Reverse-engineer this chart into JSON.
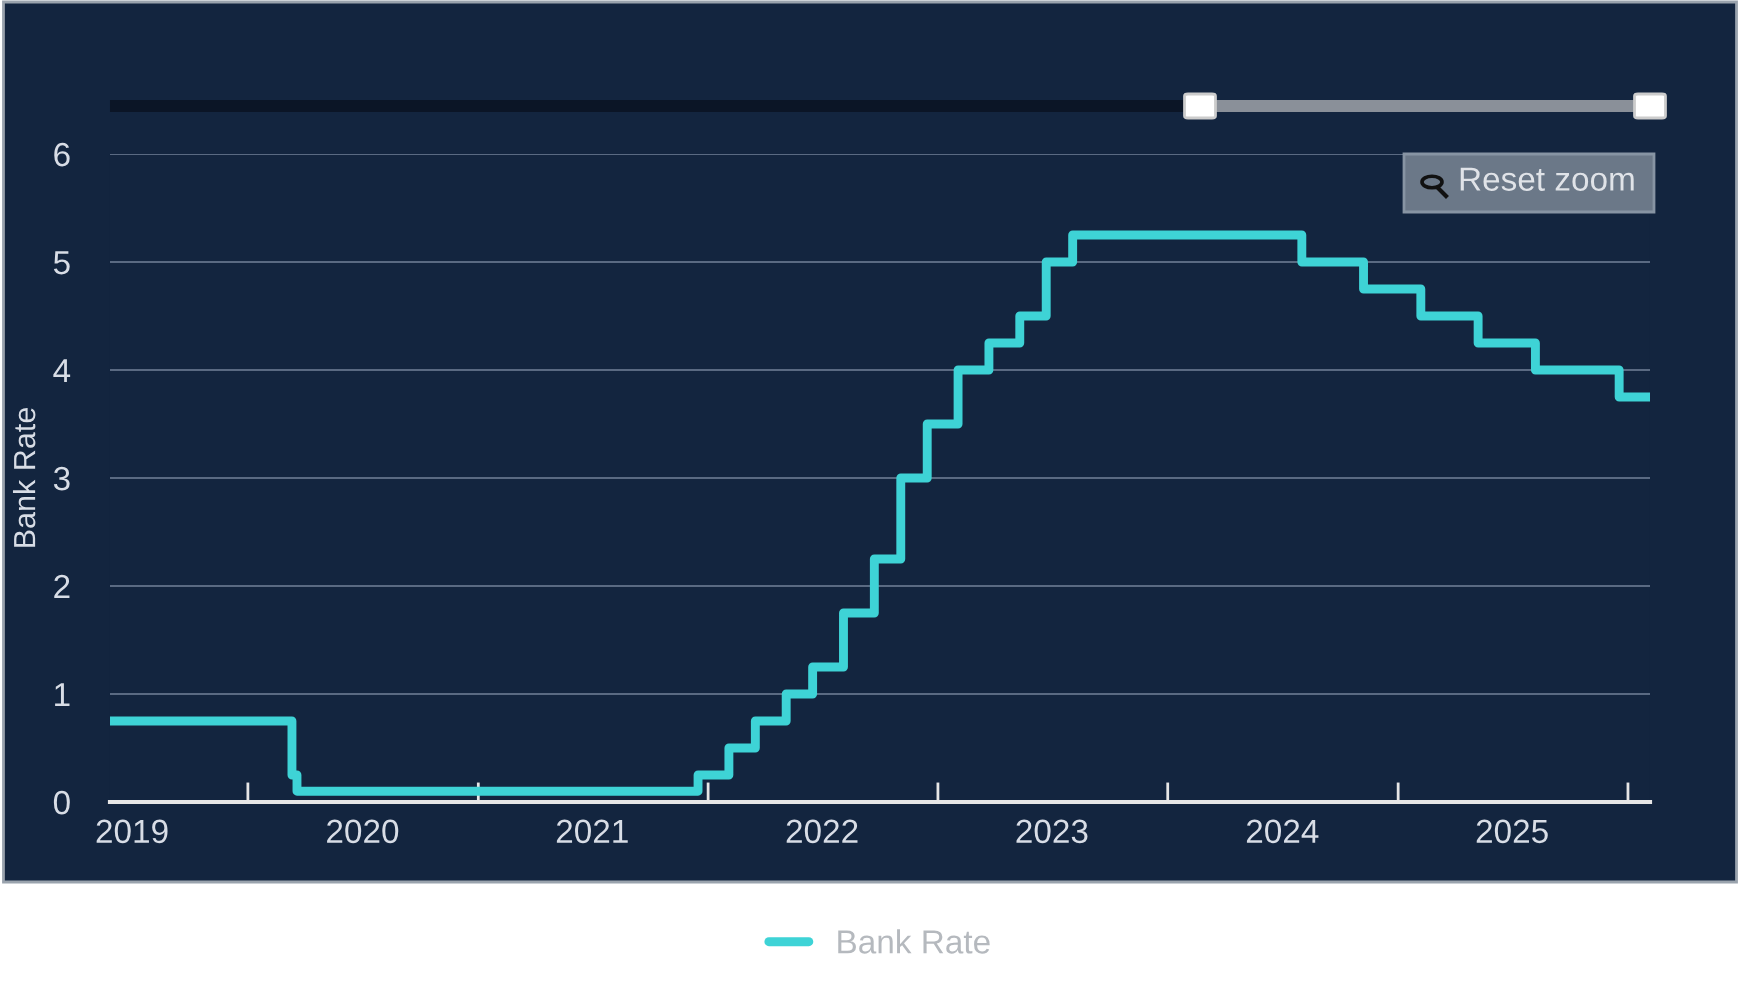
{
  "chart_data": {
    "type": "step",
    "ylabel": "Bank Rate",
    "x": [
      "2019-05-27",
      "2020-03-11",
      "2020-03-19",
      "2021-12-16",
      "2022-02-03",
      "2022-03-17",
      "2022-05-05",
      "2022-06-16",
      "2022-08-04",
      "2022-09-22",
      "2022-11-03",
      "2022-12-15",
      "2023-02-02",
      "2023-03-23",
      "2023-05-11",
      "2023-06-22",
      "2023-08-03",
      "2024-08-01",
      "2024-11-07",
      "2025-02-06",
      "2025-05-08",
      "2025-08-07",
      "2025-12-18",
      "2026-02-05"
    ],
    "series": [
      {
        "name": "Bank Rate",
        "color": "#3ed3d6",
        "values": [
          0.75,
          0.25,
          0.1,
          0.25,
          0.5,
          0.75,
          1.0,
          1.25,
          1.75,
          2.25,
          3.0,
          3.5,
          4.0,
          4.25,
          4.5,
          5.0,
          5.25,
          5.0,
          4.75,
          4.5,
          4.25,
          4.0,
          3.75,
          3.75
        ]
      }
    ],
    "xlim": [
      "2019-05-27",
      "2026-02-05"
    ],
    "xticks": [
      {
        "value": "2019-07-01",
        "label": "2019"
      },
      {
        "value": "2020-01-01",
        "label": null
      },
      {
        "value": "2020-07-01",
        "label": "2020"
      },
      {
        "value": "2021-01-01",
        "label": null
      },
      {
        "value": "2021-07-01",
        "label": "2021"
      },
      {
        "value": "2022-01-01",
        "label": null
      },
      {
        "value": "2022-07-01",
        "label": "2022"
      },
      {
        "value": "2023-01-01",
        "label": null
      },
      {
        "value": "2023-07-01",
        "label": "2023"
      },
      {
        "value": "2024-01-01",
        "label": null
      },
      {
        "value": "2024-07-01",
        "label": "2024"
      },
      {
        "value": "2025-01-01",
        "label": null
      },
      {
        "value": "2025-07-01",
        "label": "2025"
      },
      {
        "value": "2026-01-01",
        "label": null
      }
    ],
    "ylim": [
      0,
      6
    ],
    "yticks": [
      0,
      1,
      2,
      3,
      4,
      5,
      6
    ],
    "grid": "y",
    "legend": "bottom",
    "marker": "none",
    "line_style": "solid",
    "annotations": [
      "Reset zoom"
    ]
  }
}
